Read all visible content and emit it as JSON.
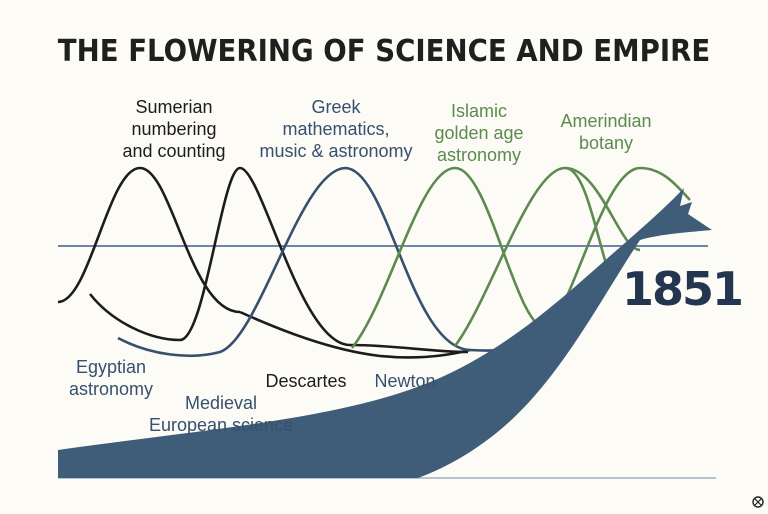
{
  "title": "THE FLOWERING OF SCIENCE AND EMPIRE",
  "labels": {
    "sumerian": [
      "Sumerian",
      "numbering",
      "and counting"
    ],
    "greek": [
      "Greek",
      "mathematics,",
      "music & astronomy"
    ],
    "islamic": [
      "Islamic",
      "golden age",
      "astronomy"
    ],
    "amerindian": [
      "Amerindian",
      "botany"
    ],
    "egyptian": [
      "Egyptian",
      "astronomy"
    ],
    "medieval": [
      "Medieval",
      "European science"
    ],
    "descartes": "Descartes",
    "newton": "Newton"
  },
  "year": "1851",
  "colors": {
    "black": "#1c1c1c",
    "blue": "#36506e",
    "green": "#5c8a4f",
    "empire": "#3f5d78",
    "axis": "#6e86a3"
  }
}
